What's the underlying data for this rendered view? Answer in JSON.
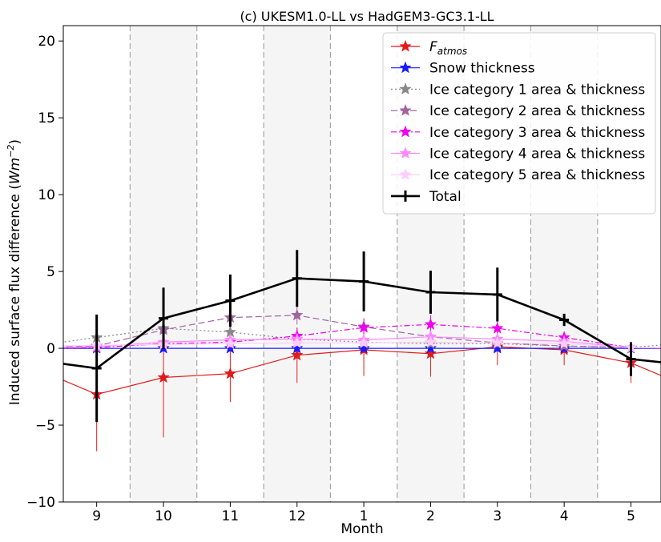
{
  "chart_data": {
    "type": "line",
    "title": "(c) UKESM1.0-LL vs HadGEM3-GC3.1-LL",
    "xlabel": "Month",
    "ylabel_main": "Induced surface flux difference (",
    "ylabel_unit": "Wm",
    "ylabel_exp": "−2",
    "ylabel_close": ")",
    "ylim": [
      -10,
      21
    ],
    "yticks": [
      -10,
      -5,
      0,
      5,
      10,
      15,
      20
    ],
    "ytick_labels": [
      "−10",
      "−5",
      "0",
      "5",
      "10",
      "15",
      "20"
    ],
    "categories": [
      "9",
      "10",
      "11",
      "12",
      "1",
      "2",
      "3",
      "4",
      "5"
    ],
    "x_positions": [
      0,
      1,
      2,
      3,
      4,
      5,
      6,
      7,
      8
    ],
    "xlim": [
      -0.5,
      8.45
    ],
    "shaded_bands": [
      [
        0.5,
        1.5
      ],
      [
        2.5,
        3.5
      ],
      [
        4.5,
        5.5
      ],
      [
        6.5,
        7.5
      ]
    ],
    "band_color": "#f5f5f5",
    "gridline_positions": [
      0.5,
      1.5,
      2.5,
      3.5,
      4.5,
      5.5,
      6.5,
      7.5
    ],
    "legend_position": "top-right",
    "series": [
      {
        "name_main": "F",
        "name_sub": "atmos",
        "color": "#e31a1c",
        "dash": "",
        "width": 1.2,
        "marker": "star",
        "values": [
          -3.0,
          -1.9,
          -1.65,
          -0.45,
          -0.1,
          -0.35,
          0.1,
          -0.1,
          -0.95
        ],
        "err": [
          3.7,
          3.9,
          1.85,
          1.8,
          1.7,
          1.5,
          1.2,
          1.0,
          1.3
        ],
        "left": -1.9,
        "right": -1.95
      },
      {
        "name": "Snow thickness",
        "color": "#1a1aff",
        "dash": "",
        "width": 1.2,
        "marker": "star",
        "values": [
          0.0,
          0.0,
          0.0,
          0.0,
          0.0,
          0.0,
          0.0,
          0.0,
          0.0
        ],
        "err": [
          0.1,
          0.1,
          0.1,
          0.1,
          0.1,
          0.1,
          0.1,
          0.1,
          0.1
        ],
        "left": 0.0,
        "right": 0.0
      },
      {
        "name": "Ice category 1 area & thickness",
        "color": "#888888",
        "dash": "2,3",
        "width": 1.2,
        "marker": "star",
        "values": [
          0.7,
          1.3,
          1.05,
          0.6,
          0.4,
          0.3,
          0.3,
          0.15,
          0.05
        ],
        "err": [
          0.4,
          0.4,
          0.3,
          0.3,
          0.2,
          0.2,
          0.2,
          0.1,
          0.1
        ],
        "left": 0.35,
        "right": 0.25
      },
      {
        "name": "Ice category 2 area & thickness",
        "color": "#a064a0",
        "dash": "8,4",
        "width": 1.2,
        "marker": "star",
        "values": [
          0.15,
          1.2,
          2.0,
          2.15,
          1.4,
          0.75,
          0.35,
          0.15,
          0.05
        ],
        "err": [
          0.3,
          0.6,
          0.7,
          0.6,
          0.5,
          0.4,
          0.3,
          0.2,
          0.1
        ],
        "left": 0.1,
        "right": 0.05
      },
      {
        "name": "Ice category 3 area & thickness",
        "color": "#ee00ee",
        "dash": "7,3,2,3",
        "width": 1.2,
        "marker": "star",
        "values": [
          0.05,
          0.3,
          0.4,
          0.8,
          1.35,
          1.55,
          1.3,
          0.7,
          0.05
        ],
        "err": [
          0.2,
          0.3,
          0.4,
          0.5,
          0.6,
          0.6,
          0.6,
          0.4,
          0.1
        ],
        "left": 0.0,
        "right": 0.0
      },
      {
        "name": "Ice category 4 area & thickness",
        "color": "#ff88ff",
        "dash": "",
        "width": 1.2,
        "marker": "star",
        "values": [
          0.1,
          0.4,
          0.55,
          0.6,
          0.55,
          0.75,
          0.6,
          0.45,
          0.05
        ],
        "err": [
          0.2,
          0.3,
          0.3,
          0.3,
          0.3,
          0.3,
          0.3,
          0.2,
          0.1
        ],
        "left": 0.05,
        "right": 0.05
      },
      {
        "name": "Ice category 5 area & thickness",
        "color": "#ffccff",
        "dash": "",
        "width": 1.2,
        "marker": "star",
        "values": [
          0.2,
          0.25,
          0.3,
          0.35,
          0.35,
          0.4,
          0.35,
          0.3,
          0.05
        ],
        "err": [
          0.2,
          0.2,
          0.2,
          0.2,
          0.2,
          0.2,
          0.2,
          0.2,
          0.1
        ],
        "left": 0.15,
        "right": 0.05
      },
      {
        "name": "Total",
        "color": "#000000",
        "dash": "",
        "width": 2.6,
        "marker": "plus",
        "values": [
          -1.3,
          1.95,
          3.1,
          4.55,
          4.35,
          3.65,
          3.5,
          1.85,
          -0.7
        ],
        "err": [
          3.5,
          2.0,
          1.7,
          1.85,
          1.95,
          1.4,
          1.75,
          0.4,
          1.1
        ],
        "left": -0.95,
        "right": -0.95
      }
    ]
  }
}
